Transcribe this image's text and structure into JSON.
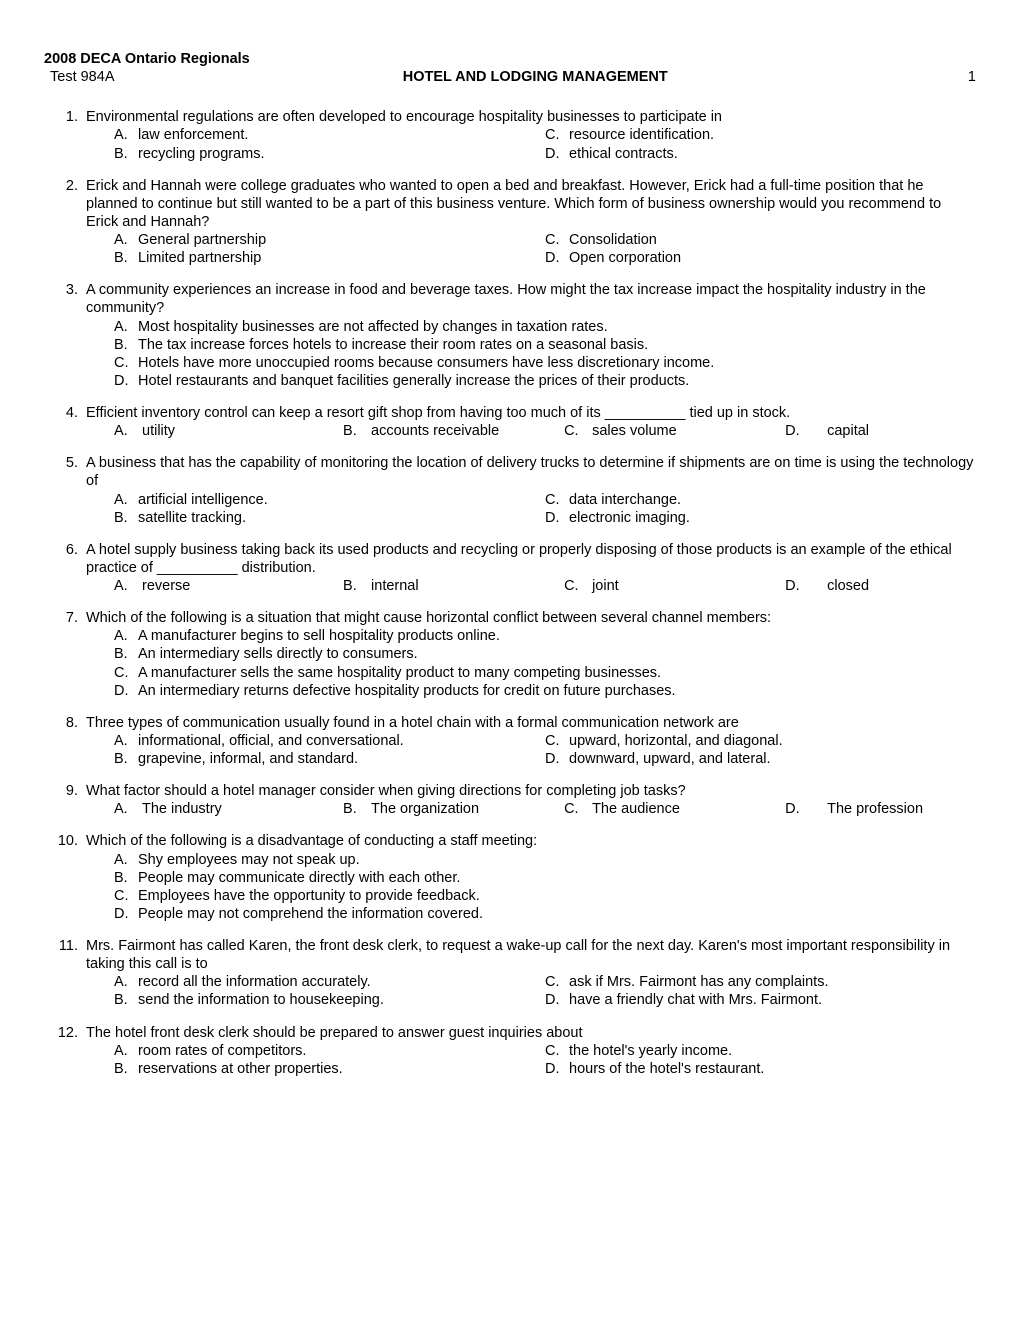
{
  "header": {
    "event_line": "2008 DECA Ontario Regionals",
    "test_id": "Test 984A",
    "title": "HOTEL AND LODGING MANAGEMENT",
    "page_number": "1"
  },
  "questions": [
    {
      "num": "1.",
      "stem": "Environmental regulations are often developed to encourage hospitality businesses to participate in",
      "layout": "two-col",
      "A": "law enforcement.",
      "B": "recycling programs.",
      "C": "resource identification.",
      "D": "ethical contracts."
    },
    {
      "num": "2.",
      "stem": "Erick and Hannah were college graduates who wanted to open a bed and breakfast. However, Erick had a full-time position that he planned to continue but still wanted to be a part of this business venture. Which form of business ownership would you recommend to Erick and Hannah?",
      "layout": "two-col",
      "A": "General partnership",
      "B": "Limited partnership",
      "C": "Consolidation",
      "D": "Open corporation"
    },
    {
      "num": "3.",
      "stem": "A community experiences an increase in food and beverage taxes. How might the tax increase impact the hospitality industry in the community?",
      "layout": "stack",
      "A": "Most hospitality businesses are not affected by changes in taxation rates.",
      "B": "The tax increase forces hotels to increase their room rates on a seasonal basis.",
      "C": "Hotels have more unoccupied rooms because consumers have less discretionary income.",
      "D": "Hotel restaurants and banquet facilities generally increase the prices of their products."
    },
    {
      "num": "4.",
      "stem": "Efficient inventory control can keep a resort gift shop from having too much of its __________ tied up in stock.",
      "layout": "inline",
      "A": "utility",
      "B": "accounts receivable",
      "C": "sales volume",
      "D": "capital"
    },
    {
      "num": "5.",
      "stem": "A business that has the capability of monitoring the location of delivery trucks to determine if shipments are on time is using the technology of",
      "layout": "two-col",
      "A": "artificial intelligence.",
      "B": "satellite tracking.",
      "C": "data interchange.",
      "D": "electronic imaging."
    },
    {
      "num": "6.",
      "stem": "A hotel supply business taking back its used products and recycling or properly disposing of those products is an example of the ethical practice of __________ distribution.",
      "layout": "inline",
      "A": "reverse",
      "B": "internal",
      "C": "joint",
      "D": "closed"
    },
    {
      "num": "7.",
      "stem": "Which of the following is a situation that might cause horizontal conflict between several channel members:",
      "layout": "stack",
      "A": "A manufacturer begins to sell hospitality products online.",
      "B": "An intermediary sells directly to consumers.",
      "C": "A manufacturer sells the same hospitality product to many competing businesses.",
      "D": "An intermediary returns defective hospitality products for credit on future purchases."
    },
    {
      "num": "8.",
      "stem": "Three types of communication usually found in a hotel chain with a formal communication network are",
      "layout": "two-col",
      "A": "informational, official, and conversational.",
      "B": "grapevine, informal, and standard.",
      "C": "upward, horizontal, and diagonal.",
      "D": "downward, upward, and lateral."
    },
    {
      "num": "9.",
      "stem": "What factor should a hotel manager consider when giving directions for completing job tasks?",
      "layout": "inline",
      "A": "The industry",
      "B": "The organization",
      "C": "The audience",
      "D": "The profession"
    },
    {
      "num": "10.",
      "stem": "Which of the following is a disadvantage of conducting a staff meeting:",
      "layout": "stack",
      "A": "Shy employees may not speak up.",
      "B": "People may communicate directly with each other.",
      "C": "Employees have the opportunity to provide feedback.",
      "D": "People may not comprehend the information covered."
    },
    {
      "num": "11.",
      "stem": "Mrs. Fairmont has called Karen, the front desk clerk, to request a wake-up call for the next day. Karen's most important responsibility in taking this call is to",
      "layout": "two-col",
      "A": "record all the information accurately.",
      "B": "send the information to housekeeping.",
      "C": "ask if Mrs. Fairmont has any complaints.",
      "D": "have a friendly chat with Mrs. Fairmont."
    },
    {
      "num": "12.",
      "stem": "The hotel front desk clerk should be prepared to answer guest inquiries about",
      "layout": "two-col",
      "A": "room rates of competitors.",
      "B": "reservations at other properties.",
      "C": "the hotel's yearly income.",
      "D": "hours of the hotel's restaurant."
    }
  ]
}
